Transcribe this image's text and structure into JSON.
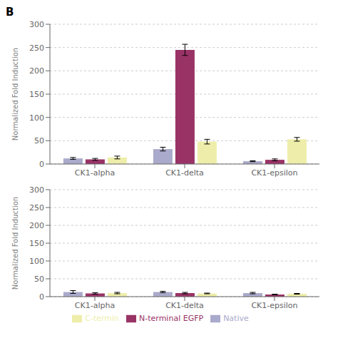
{
  "chart_data": [
    {
      "type": "bar",
      "annotations": [
        "B"
      ],
      "categories": [
        "CK1-alpha",
        "CK1-delta",
        "CK1-epsilon"
      ],
      "series": [
        {
          "name": "Native",
          "color": "#aaaacc",
          "values": [
            12,
            32,
            6
          ],
          "errors": [
            2,
            4,
            1
          ]
        },
        {
          "name": "N-terminal EGFP",
          "color": "#993366",
          "values": [
            10,
            245,
            9
          ],
          "errors": [
            2,
            12,
            2
          ]
        },
        {
          "name": "C-termin",
          "color": "#eeeeaa",
          "values": [
            14,
            48,
            53
          ],
          "errors": [
            3,
            5,
            4
          ]
        }
      ],
      "ylabel": "Normalized Fold Induction",
      "ylim": [
        0,
        300
      ],
      "yticks": [
        0,
        50,
        100,
        150,
        200,
        250,
        300
      ],
      "grid": true
    },
    {
      "type": "bar",
      "categories": [
        "CK1-alpha",
        "CK1-delta",
        "CK1-epsilon"
      ],
      "series": [
        {
          "name": "Native",
          "color": "#aaaacc",
          "values": [
            13,
            13,
            10
          ],
          "errors": [
            4,
            2,
            2
          ]
        },
        {
          "name": "N-terminal EGFP",
          "color": "#993366",
          "values": [
            9,
            10,
            6
          ],
          "errors": [
            2,
            2,
            1
          ]
        },
        {
          "name": "C-termin",
          "color": "#eeeeaa",
          "values": [
            10,
            9,
            8
          ],
          "errors": [
            2,
            1,
            1
          ]
        }
      ],
      "ylabel": "Normalized Fold Induction",
      "ylim": [
        0,
        300
      ],
      "yticks": [
        0,
        50,
        100,
        150,
        200,
        250,
        300
      ],
      "grid": true,
      "legend": "bottom"
    }
  ]
}
